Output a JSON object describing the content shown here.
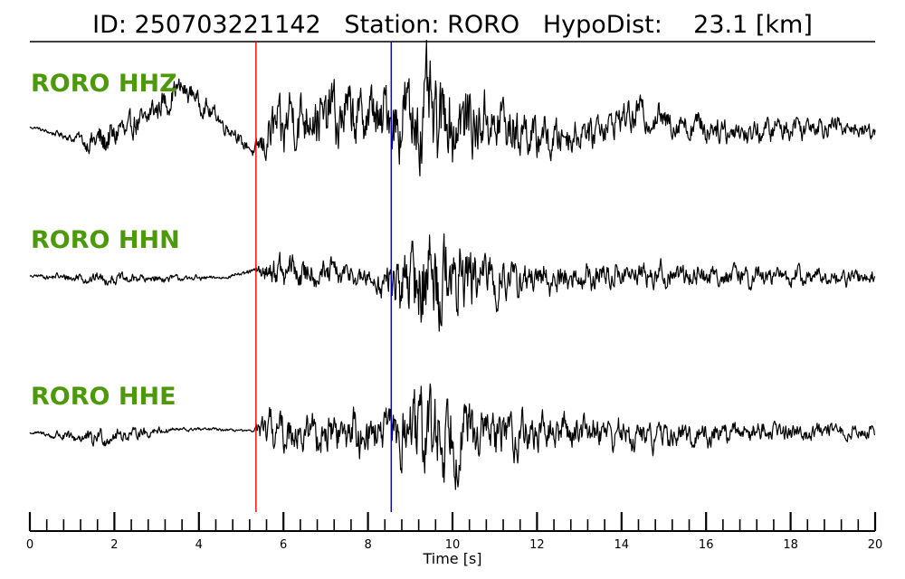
{
  "chart_data": {
    "type": "line",
    "title": "ID: 250703221142   Station: RORO   HypoDist:    23.1 [km]",
    "xlabel": "Time [s]",
    "xlim": [
      0,
      20
    ],
    "x_ticks": [
      0,
      2,
      4,
      6,
      8,
      10,
      12,
      14,
      16,
      18,
      20
    ],
    "x_tick_labels": [
      "0",
      "2",
      "4",
      "6",
      "8",
      "10",
      "12",
      "14",
      "16",
      "18",
      "20"
    ],
    "minor_tick_step": 0.4,
    "grid": false,
    "y_axis": "none",
    "label_color": "#4c9a0a",
    "trace_color": "#000000",
    "picks": [
      {
        "phase": "P",
        "time": 5.35,
        "color": "#ff0000"
      },
      {
        "phase": "S",
        "time": 8.55,
        "color": "#0000cc"
      }
    ],
    "series": [
      {
        "name": "RORO HHZ",
        "envelope": [
          [
            0,
            0.02
          ],
          [
            1.2,
            0.1
          ],
          [
            1.6,
            0.35
          ],
          [
            3.4,
            0.25
          ],
          [
            5.3,
            0.12
          ],
          [
            5.7,
            0.55
          ],
          [
            8.4,
            0.65
          ],
          [
            9.4,
            1.0
          ],
          [
            10.5,
            0.7
          ],
          [
            12.5,
            0.35
          ],
          [
            20,
            0.18
          ]
        ],
        "trend": [
          [
            0,
            0.0
          ],
          [
            0.6,
            -0.12
          ],
          [
            1.6,
            -0.28
          ],
          [
            2.6,
            0.05
          ],
          [
            3.6,
            0.68
          ],
          [
            4.6,
            0.05
          ],
          [
            5.3,
            -0.45
          ],
          [
            5.6,
            -0.2
          ],
          [
            6.3,
            0.18
          ],
          [
            8.4,
            0.18
          ],
          [
            10,
            0.1
          ],
          [
            11,
            0.05
          ],
          [
            12.3,
            -0.22
          ],
          [
            13.2,
            -0.08
          ],
          [
            14.3,
            0.22
          ],
          [
            15.3,
            0.06
          ],
          [
            17,
            -0.1
          ],
          [
            18.5,
            0.04
          ],
          [
            19.8,
            -0.05
          ],
          [
            20,
            -0.14
          ]
        ]
      },
      {
        "name": "RORO HHN",
        "envelope": [
          [
            0,
            0.02
          ],
          [
            1.2,
            0.1
          ],
          [
            2.6,
            0.09
          ],
          [
            4.6,
            0.03
          ],
          [
            5.3,
            0.05
          ],
          [
            5.8,
            0.3
          ],
          [
            8.2,
            0.2
          ],
          [
            8.8,
            0.6
          ],
          [
            9.3,
            1.0
          ],
          [
            10.8,
            0.45
          ],
          [
            12.5,
            0.25
          ],
          [
            20,
            0.14
          ]
        ],
        "trend": [
          [
            0,
            0.0
          ],
          [
            2,
            -0.05
          ],
          [
            4.5,
            -0.03
          ],
          [
            5.4,
            0.08
          ],
          [
            7.5,
            0.02
          ],
          [
            8.5,
            -0.14
          ],
          [
            9.5,
            0.0
          ],
          [
            12,
            -0.08
          ],
          [
            14,
            0.02
          ],
          [
            20,
            -0.03
          ]
        ]
      },
      {
        "name": "RORO HHE",
        "envelope": [
          [
            0,
            0.02
          ],
          [
            1.4,
            0.15
          ],
          [
            2.4,
            0.12
          ],
          [
            3.5,
            0.04
          ],
          [
            5.3,
            0.02
          ],
          [
            5.5,
            0.35
          ],
          [
            8.4,
            0.4
          ],
          [
            9.4,
            1.0
          ],
          [
            10.5,
            0.5
          ],
          [
            12.5,
            0.3
          ],
          [
            20,
            0.12
          ]
        ],
        "trend": [
          [
            0,
            0.0
          ],
          [
            1,
            -0.08
          ],
          [
            1.5,
            -0.1
          ],
          [
            2.2,
            -0.04
          ],
          [
            3.2,
            0.04
          ],
          [
            4.2,
            0.05
          ],
          [
            5.3,
            0.02
          ],
          [
            6.5,
            0.0
          ],
          [
            9,
            0.0
          ],
          [
            12,
            -0.02
          ],
          [
            13.3,
            0.08
          ],
          [
            14.2,
            -0.06
          ],
          [
            15.5,
            -0.06
          ],
          [
            17,
            0.03
          ],
          [
            20,
            0.0
          ]
        ]
      }
    ]
  }
}
